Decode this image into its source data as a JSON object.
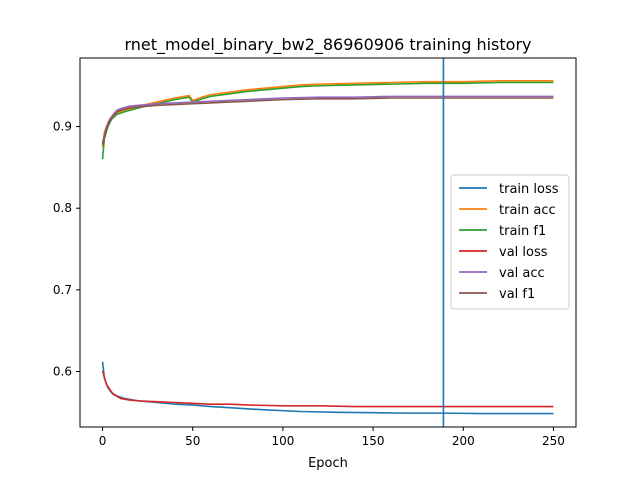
{
  "chart_data": {
    "type": "line",
    "title": "rnet_model_binary_bw2_86960906 training history",
    "xlabel": "Epoch",
    "ylabel": "",
    "xlim": [
      -12.5,
      262.5
    ],
    "ylim": [
      0.532,
      0.984
    ],
    "x_ticks": [
      0,
      50,
      100,
      150,
      200,
      250
    ],
    "y_ticks": [
      0.6,
      0.7,
      0.8,
      0.9
    ],
    "x_tick_labels": [
      "0",
      "50",
      "100",
      "150",
      "200",
      "250"
    ],
    "y_tick_labels": [
      "0.6",
      "0.7",
      "0.8",
      "0.9"
    ],
    "grid": false,
    "legend_position": "center-right",
    "vline": {
      "x": 189,
      "color": "#1f77b4"
    },
    "series": [
      {
        "name": "train loss",
        "color": "#1f77b4",
        "x": [
          0,
          1,
          3,
          5,
          8,
          12,
          20,
          30,
          40,
          50,
          60,
          75,
          90,
          110,
          130,
          150,
          170,
          190,
          210,
          230,
          250
        ],
        "y": [
          0.612,
          0.592,
          0.58,
          0.574,
          0.57,
          0.567,
          0.564,
          0.562,
          0.56,
          0.559,
          0.557,
          0.555,
          0.553,
          0.551,
          0.55,
          0.5495,
          0.549,
          0.549,
          0.5485,
          0.5485,
          0.5485
        ]
      },
      {
        "name": "train acc",
        "color": "#ff7f0e",
        "x": [
          0,
          1,
          3,
          5,
          8,
          12,
          20,
          30,
          40,
          48,
          50,
          55,
          60,
          70,
          80,
          90,
          100,
          110,
          120,
          140,
          160,
          180,
          200,
          220,
          240,
          250
        ],
        "y": [
          0.875,
          0.893,
          0.905,
          0.912,
          0.917,
          0.92,
          0.925,
          0.93,
          0.935,
          0.938,
          0.932,
          0.936,
          0.939,
          0.942,
          0.945,
          0.947,
          0.949,
          0.951,
          0.952,
          0.953,
          0.954,
          0.955,
          0.955,
          0.956,
          0.956,
          0.956
        ]
      },
      {
        "name": "train f1",
        "color": "#2ca02c",
        "x": [
          0,
          1,
          3,
          5,
          8,
          12,
          20,
          30,
          40,
          48,
          50,
          55,
          60,
          70,
          80,
          90,
          100,
          110,
          120,
          140,
          160,
          180,
          200,
          220,
          240,
          250
        ],
        "y": [
          0.86,
          0.885,
          0.9,
          0.909,
          0.915,
          0.918,
          0.923,
          0.928,
          0.933,
          0.936,
          0.93,
          0.934,
          0.937,
          0.94,
          0.943,
          0.945,
          0.947,
          0.949,
          0.95,
          0.951,
          0.952,
          0.953,
          0.953,
          0.954,
          0.954,
          0.954
        ]
      },
      {
        "name": "val loss",
        "color": "#d62728",
        "x": [
          0,
          2,
          4,
          6,
          10,
          15,
          20,
          30,
          40,
          50,
          60,
          70,
          80,
          100,
          120,
          140,
          160,
          180,
          200,
          220,
          240,
          250
        ],
        "y": [
          0.601,
          0.585,
          0.578,
          0.572,
          0.567,
          0.565,
          0.564,
          0.563,
          0.562,
          0.561,
          0.56,
          0.56,
          0.559,
          0.558,
          0.558,
          0.557,
          0.557,
          0.557,
          0.557,
          0.557,
          0.557,
          0.557
        ]
      },
      {
        "name": "val acc",
        "color": "#9467bd",
        "x": [
          0,
          2,
          4,
          6,
          8,
          10,
          15,
          20,
          25,
          30,
          40,
          50,
          60,
          70,
          80,
          90,
          100,
          120,
          140,
          160,
          180,
          200,
          220,
          240,
          250
        ],
        "y": [
          0.88,
          0.898,
          0.909,
          0.915,
          0.92,
          0.922,
          0.925,
          0.926,
          0.927,
          0.928,
          0.929,
          0.93,
          0.931,
          0.932,
          0.933,
          0.934,
          0.935,
          0.936,
          0.936,
          0.937,
          0.937,
          0.937,
          0.937,
          0.937,
          0.937
        ]
      },
      {
        "name": "val f1",
        "color": "#8c564b",
        "x": [
          0,
          2,
          4,
          6,
          8,
          10,
          15,
          20,
          25,
          30,
          40,
          50,
          60,
          70,
          80,
          90,
          100,
          120,
          140,
          160,
          180,
          200,
          220,
          240,
          250
        ],
        "y": [
          0.878,
          0.896,
          0.907,
          0.913,
          0.918,
          0.92,
          0.923,
          0.924,
          0.925,
          0.926,
          0.927,
          0.928,
          0.929,
          0.93,
          0.931,
          0.932,
          0.933,
          0.934,
          0.934,
          0.935,
          0.935,
          0.935,
          0.935,
          0.935,
          0.935
        ]
      }
    ]
  }
}
